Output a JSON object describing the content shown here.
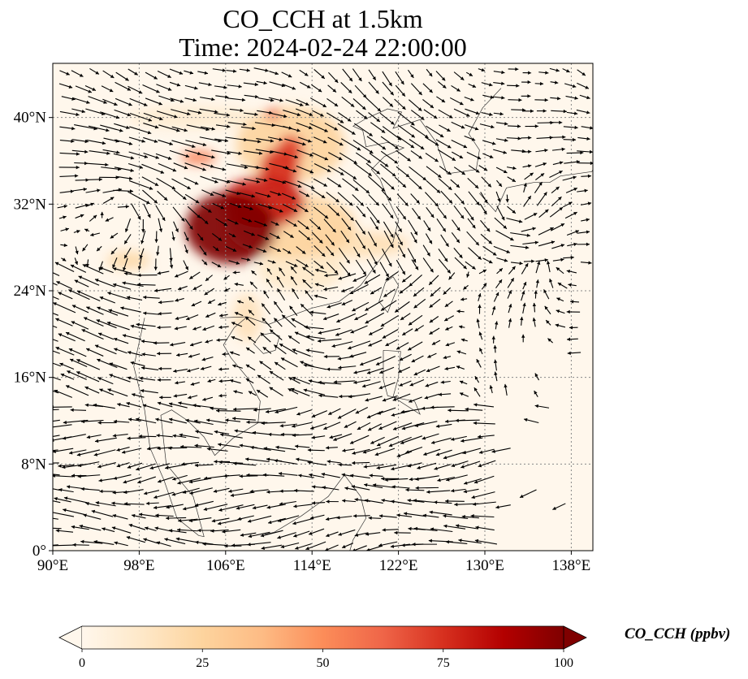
{
  "title": {
    "line1": "CO_CCH at 1.5km",
    "line2": "Time: 2024-02-24 22:00:00"
  },
  "map": {
    "variable": "CO_CCH",
    "level": "1.5km",
    "lon_range": [
      90,
      140
    ],
    "lat_range": [
      0,
      45
    ],
    "lon_ticks": [
      {
        "value": 90,
        "label": "90°E"
      },
      {
        "value": 98,
        "label": "98°E"
      },
      {
        "value": 106,
        "label": "106°E"
      },
      {
        "value": 114,
        "label": "114°E"
      },
      {
        "value": 122,
        "label": "122°E"
      },
      {
        "value": 130,
        "label": "130°E"
      },
      {
        "value": 138,
        "label": "138°E"
      }
    ],
    "lat_ticks": [
      {
        "value": 0,
        "label": "0°"
      },
      {
        "value": 8,
        "label": "8°N"
      },
      {
        "value": 16,
        "label": "16°N"
      },
      {
        "value": 24,
        "label": "24°N"
      },
      {
        "value": 32,
        "label": "32°N"
      },
      {
        "value": 40,
        "label": "40°N"
      }
    ],
    "gridlines": "dotted",
    "overlay": "wind vectors (black arrows)",
    "colormap": "OrRd"
  },
  "concentration_patches": [
    {
      "lon": 106.5,
      "lat": 29.8,
      "rx": 4.2,
      "ry": 3.3,
      "value": 100
    },
    {
      "lon": 109.5,
      "lat": 32.2,
      "rx": 3.8,
      "ry": 2.4,
      "value": 80
    },
    {
      "lon": 111.0,
      "lat": 35.2,
      "rx": 1.8,
      "ry": 2.0,
      "value": 75
    },
    {
      "lon": 112.0,
      "lat": 37.0,
      "rx": 1.2,
      "ry": 1.4,
      "value": 70
    },
    {
      "lon": 110.4,
      "lat": 40.3,
      "rx": 0.7,
      "ry": 0.5,
      "value": 65
    },
    {
      "lon": 103.5,
      "lat": 36.3,
      "rx": 1.6,
      "ry": 0.6,
      "value": 55
    },
    {
      "lon": 112.0,
      "lat": 30.0,
      "rx": 6.0,
      "ry": 3.0,
      "value": 25
    },
    {
      "lon": 118.0,
      "lat": 28.3,
      "rx": 5.0,
      "ry": 1.2,
      "value": 18
    },
    {
      "lon": 112.0,
      "lat": 37.5,
      "rx": 5.0,
      "ry": 3.5,
      "value": 25
    },
    {
      "lon": 97.0,
      "lat": 26.8,
      "rx": 2.0,
      "ry": 0.8,
      "value": 22
    },
    {
      "lon": 108.0,
      "lat": 21.5,
      "rx": 1.3,
      "ry": 2.2,
      "value": 16
    },
    {
      "lon": 103.0,
      "lat": 40.0,
      "rx": 6.0,
      "ry": 1.0,
      "value": 10
    },
    {
      "lon": 113.0,
      "lat": 26.0,
      "rx": 4.0,
      "ry": 2.0,
      "value": 12
    }
  ],
  "vortices": [
    {
      "lon": 96.5,
      "lat": 32.0,
      "strength": 1.0,
      "sense": -1
    },
    {
      "lon": 132.5,
      "lat": 31.5,
      "strength": 1.0,
      "sense": 1
    },
    {
      "lon": 115.0,
      "lat": 21.5,
      "strength": 0.6,
      "sense": -1
    }
  ],
  "colorbar": {
    "label": "CO_CCH (ppbv)",
    "min": 0,
    "max": 100,
    "extend": "both",
    "ticks": [
      {
        "value": 0,
        "label": "0"
      },
      {
        "value": 25,
        "label": "25"
      },
      {
        "value": 50,
        "label": "50"
      },
      {
        "value": 75,
        "label": "75"
      },
      {
        "value": 100,
        "label": "100"
      }
    ],
    "stops": [
      "#fff7ec",
      "#fee8c8",
      "#fdd49e",
      "#fdbb84",
      "#fc8d59",
      "#ef6548",
      "#d7301f",
      "#b30000",
      "#7f0000"
    ]
  }
}
